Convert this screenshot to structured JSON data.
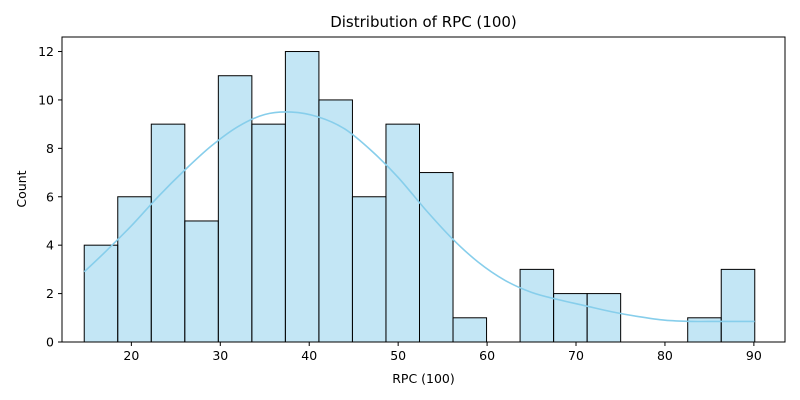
{
  "chart_data": {
    "type": "bar",
    "title": "Distribution of RPC (100)",
    "xlabel": "RPC (100)",
    "ylabel": "Count",
    "xlim": [
      12.2,
      93.5
    ],
    "ylim": [
      0,
      12.6
    ],
    "xticks": [
      20,
      30,
      40,
      50,
      60,
      70,
      80,
      90
    ],
    "yticks": [
      0,
      2,
      4,
      6,
      8,
      10,
      12
    ],
    "grid": false,
    "colors": {
      "bar_fill": "#87ceeb",
      "bar_edge": "#000000",
      "kde_line": "#87ceeb"
    },
    "histogram": {
      "bin_edges": [
        14.7,
        18.47,
        22.24,
        26.01,
        29.78,
        33.55,
        37.32,
        41.09,
        44.86,
        48.63,
        52.4,
        56.17,
        59.94,
        63.71,
        67.48,
        71.25,
        75.02,
        78.79,
        82.56,
        86.33,
        90.1
      ],
      "counts": [
        4,
        6,
        9,
        5,
        11,
        9,
        12,
        10,
        6,
        9,
        7,
        1,
        0,
        3,
        2,
        2,
        0,
        0,
        1,
        3
      ]
    },
    "kde": {
      "x": [
        14.7,
        17,
        20,
        23,
        26,
        29,
        32,
        35,
        38,
        41,
        44,
        47,
        50,
        53,
        56,
        59,
        62,
        65,
        68,
        71,
        74,
        77,
        80,
        83,
        86,
        90.1
      ],
      "y": [
        2.9,
        3.7,
        4.8,
        6.0,
        7.1,
        8.1,
        8.9,
        9.4,
        9.5,
        9.3,
        8.8,
        7.9,
        6.8,
        5.5,
        4.3,
        3.3,
        2.55,
        2.05,
        1.75,
        1.5,
        1.25,
        1.05,
        0.9,
        0.85,
        0.85,
        0.85
      ]
    }
  }
}
